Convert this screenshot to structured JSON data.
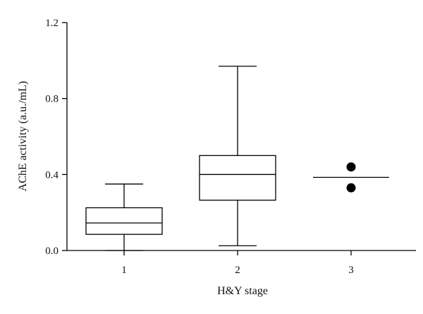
{
  "chart_data": {
    "type": "box",
    "xlabel": "H&Y stage",
    "ylabel": "AChE activity (a.u./mL)",
    "ylim": [
      0.0,
      1.2
    ],
    "yticks": [
      "0.0",
      "0.4",
      "0.8",
      "1.2"
    ],
    "ytick_values": [
      0.0,
      0.4,
      0.8,
      1.2
    ],
    "categories": [
      "1",
      "2",
      "3"
    ],
    "boxes": [
      {
        "category": "1",
        "min": 0.0,
        "q1": 0.085,
        "median": 0.145,
        "q3": 0.225,
        "max": 0.35
      },
      {
        "category": "2",
        "min": 0.025,
        "q1": 0.265,
        "median": 0.4,
        "q3": 0.5,
        "max": 0.97
      }
    ],
    "stage3": {
      "category": "3",
      "line": 0.385,
      "points": [
        0.44,
        0.33
      ]
    },
    "grid": false,
    "legend": "none"
  }
}
